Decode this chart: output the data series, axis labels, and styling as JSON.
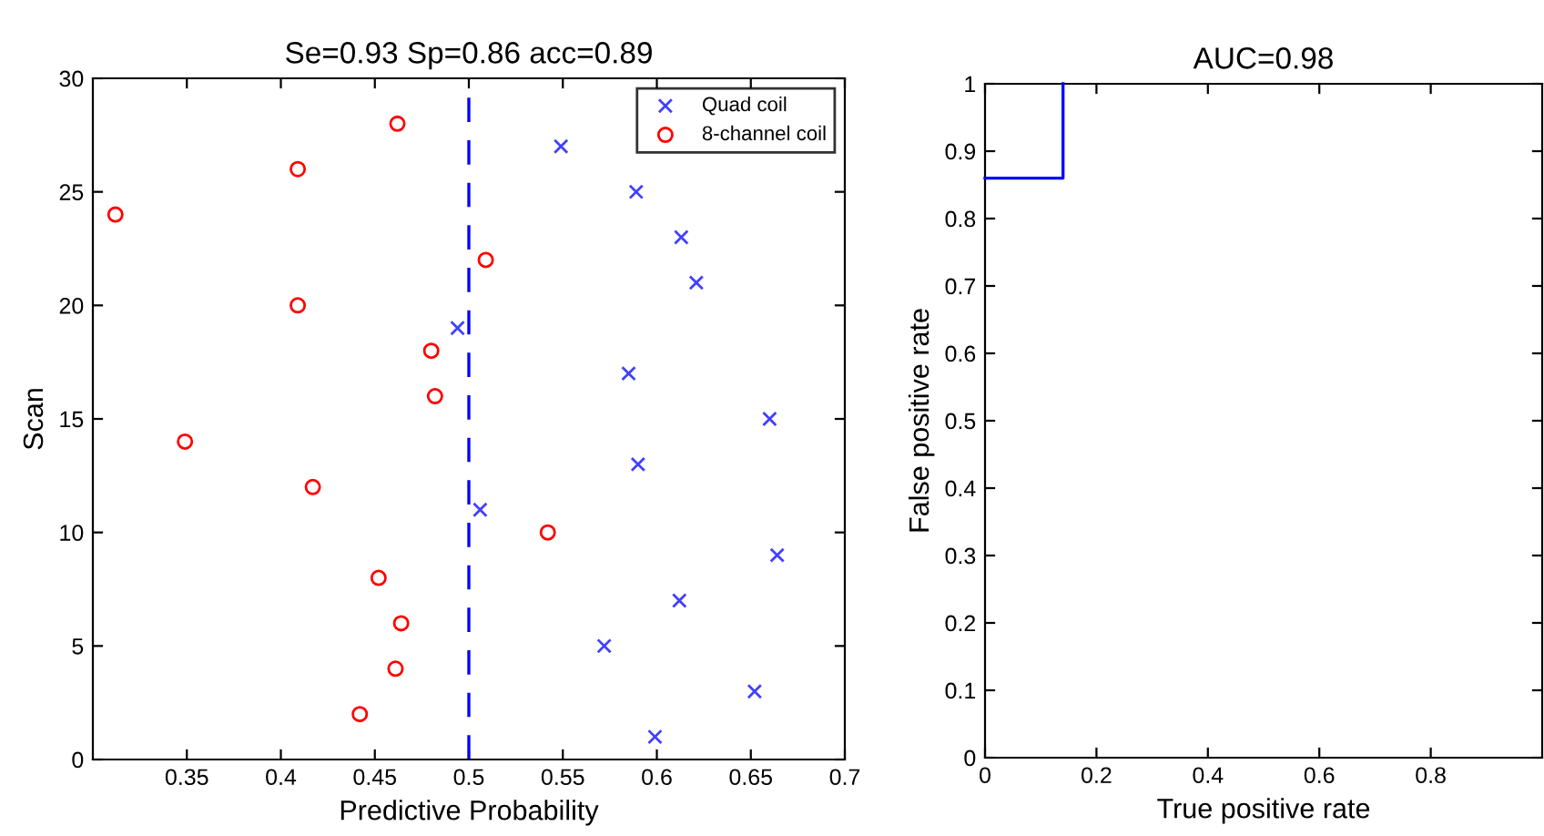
{
  "chart_data": [
    {
      "type": "scatter",
      "title": "Se=0.93 Sp=0.86 acc=0.89",
      "xlabel": "Predictive Probability",
      "ylabel": "Scan",
      "series": [
        {
          "name": "Quad coil",
          "color": "#4040ff",
          "marker": "cross",
          "x": [
            0.549,
            0.589,
            0.613,
            0.621,
            0.494,
            0.585,
            0.66,
            0.59,
            0.506,
            0.664,
            0.612,
            0.572,
            0.652,
            0.599
          ],
          "values": [
            27,
            25,
            23,
            21,
            19,
            17,
            15,
            13,
            11,
            9,
            7,
            5,
            3,
            1
          ]
        },
        {
          "name": "8-channel coil",
          "color": "#ff0000",
          "marker": "circle",
          "x": [
            0.462,
            0.409,
            0.312,
            0.509,
            0.409,
            0.48,
            0.482,
            0.349,
            0.417,
            0.542,
            0.452,
            0.464,
            0.461,
            0.442
          ],
          "values": [
            28,
            26,
            24,
            22,
            20,
            18,
            16,
            14,
            12,
            10,
            8,
            6,
            4,
            2
          ]
        }
      ],
      "ref_lines": [
        {
          "axis": "x",
          "value": 0.5,
          "color": "#0000ff",
          "line_style": "dashed"
        }
      ],
      "xlim": [
        0.3,
        0.7
      ],
      "xticks": [
        0.35,
        0.4,
        0.45,
        0.5,
        0.55,
        0.6,
        0.65,
        0.7
      ],
      "ylim": [
        0,
        30
      ],
      "yticks": [
        0,
        5,
        10,
        15,
        20,
        25,
        30
      ],
      "legend": "top right",
      "grid": false
    },
    {
      "type": "line",
      "title": "AUC=0.98",
      "xlabel": "True positive rate",
      "ylabel": "False positive rate",
      "series": [
        {
          "color": "#0000ff",
          "x": [
            0,
            0.14,
            0.14
          ],
          "values": [
            0.86,
            0.86,
            1
          ]
        }
      ],
      "xlim": [
        0,
        1
      ],
      "xticks": [
        0,
        0.2,
        0.4,
        0.6,
        0.8
      ],
      "ylim": [
        0,
        1
      ],
      "yticks": [
        0,
        0.1,
        0.2,
        0.3,
        0.4,
        0.5,
        0.6,
        0.7,
        0.8,
        0.9,
        1
      ],
      "legend": false,
      "grid": false,
      "marker": "none",
      "line_style": "solid"
    }
  ]
}
